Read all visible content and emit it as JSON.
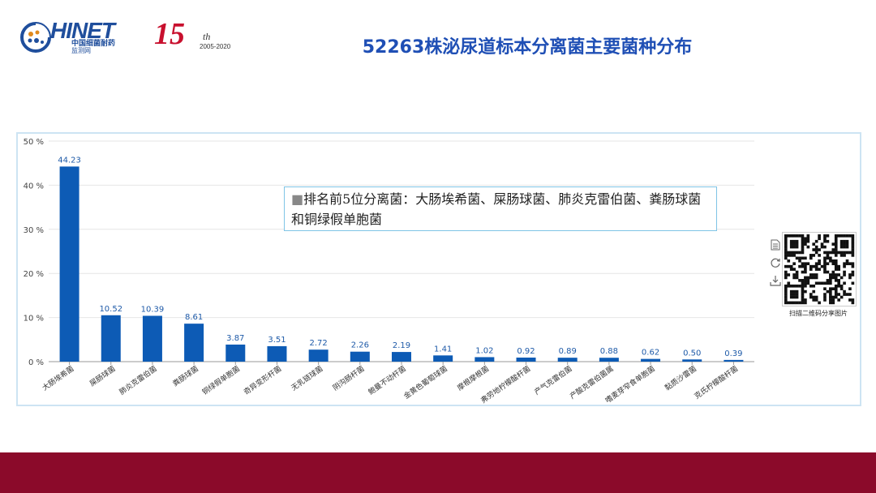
{
  "header": {
    "logo_text": "HINET",
    "logo_sub_line1": "中国细菌耐药",
    "logo_sub_line2": "监测网",
    "anniversary_number": "15",
    "anniversary_suffix": "th",
    "anniversary_years": "2005-2020",
    "title": "52263株泌尿道标本分离菌主要菌种分布"
  },
  "note": {
    "mark": "■",
    "text": "排名前5位分离菌：大肠埃希菌、屎肠球菌、肺炎克雷伯菌、粪肠球菌和铜绿假单胞菌"
  },
  "qr": {
    "label": "扫描二维码分享图片"
  },
  "toolbox": {
    "icons": [
      "document-icon",
      "refresh-icon",
      "download-icon"
    ]
  },
  "colors": {
    "bar": "#0d5bb5",
    "label": "#1e5aa8",
    "footer": "#8b0a2a",
    "title": "#1f4fb5"
  },
  "chart_data": {
    "type": "bar",
    "categories": [
      "大肠埃希菌",
      "屎肠球菌",
      "肺炎克雷伯菌",
      "粪肠球菌",
      "铜绿假单胞菌",
      "奇异变形杆菌",
      "无乳链球菌",
      "阴沟肠杆菌",
      "鲍曼不动杆菌",
      "金黄色葡萄球菌",
      "摩根摩根菌",
      "弗劳地柠檬酸杆菌",
      "产气克雷伯菌",
      "产酸克雷伯菌属",
      "嗜麦芽窄食单胞菌",
      "黏质沙雷菌",
      "克氏柠檬酸杆菌"
    ],
    "values": [
      44.23,
      10.52,
      10.39,
      8.61,
      3.87,
      3.51,
      2.72,
      2.26,
      2.19,
      1.41,
      1.02,
      0.92,
      0.89,
      0.88,
      0.62,
      0.5,
      0.39
    ],
    "value_labels": [
      "44.23",
      "10.52",
      "10.39",
      "8.61",
      "3.87",
      "3.51",
      "2.72",
      "2.26",
      "2.19",
      "1.41",
      "1.02",
      "0.92",
      "0.89",
      "0.88",
      "0.62",
      "0.50",
      "0.39"
    ],
    "y_ticks": [
      0,
      10,
      20,
      30,
      40,
      50
    ],
    "y_tick_labels": [
      "0 %",
      "10 %",
      "20 %",
      "30 %",
      "40 %",
      "50 %"
    ],
    "ylim": [
      0,
      50
    ],
    "grid": true,
    "xlabel": "",
    "ylabel": ""
  }
}
